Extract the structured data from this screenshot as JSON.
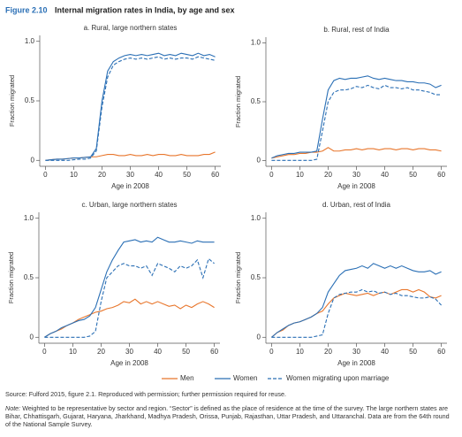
{
  "header": {
    "figure": "Figure 2.10",
    "title": "Internal migration rates in India, by age and sex"
  },
  "chart_data": [
    {
      "type": "line",
      "title": "a. Rural, large northern states",
      "xlabel": "Age in 2008",
      "ylabel": "Fraction migrated",
      "x": [
        0,
        2,
        4,
        6,
        8,
        10,
        12,
        14,
        16,
        18,
        20,
        22,
        24,
        26,
        28,
        30,
        32,
        34,
        36,
        38,
        40,
        42,
        44,
        46,
        48,
        50,
        52,
        54,
        56,
        58,
        60
      ],
      "xlim": [
        -2,
        62
      ],
      "ylim": [
        -0.05,
        1.05
      ],
      "xticks": [
        0,
        10,
        20,
        30,
        40,
        50,
        60
      ],
      "yticks": [
        0,
        0.5,
        {
          "value": 1,
          "label": "1.0"
        }
      ],
      "series": [
        {
          "name": "Men",
          "color": "#e8762c",
          "dashed": false,
          "values": [
            0,
            0.005,
            0.01,
            0.01,
            0.015,
            0.02,
            0.02,
            0.025,
            0.03,
            0.03,
            0.04,
            0.05,
            0.05,
            0.04,
            0.04,
            0.05,
            0.04,
            0.04,
            0.05,
            0.04,
            0.05,
            0.05,
            0.04,
            0.04,
            0.05,
            0.04,
            0.04,
            0.04,
            0.05,
            0.05,
            0.07
          ]
        },
        {
          "name": "Women",
          "color": "#2a6fb5",
          "dashed": false,
          "values": [
            0,
            0.005,
            0.01,
            0.01,
            0.015,
            0.02,
            0.02,
            0.025,
            0.03,
            0.1,
            0.5,
            0.75,
            0.83,
            0.86,
            0.88,
            0.89,
            0.88,
            0.89,
            0.88,
            0.89,
            0.9,
            0.88,
            0.89,
            0.88,
            0.9,
            0.89,
            0.88,
            0.9,
            0.88,
            0.89,
            0.87
          ]
        },
        {
          "name": "Women migrating upon marriage",
          "color": "#2a6fb5",
          "dashed": true,
          "values": [
            0,
            0,
            0,
            0,
            0,
            0.005,
            0.01,
            0.01,
            0.02,
            0.08,
            0.45,
            0.7,
            0.8,
            0.83,
            0.85,
            0.86,
            0.85,
            0.86,
            0.85,
            0.86,
            0.87,
            0.85,
            0.86,
            0.85,
            0.86,
            0.86,
            0.85,
            0.87,
            0.86,
            0.85,
            0.84
          ]
        }
      ]
    },
    {
      "type": "line",
      "title": "b. Rural, rest of India",
      "xlabel": "Age in 2008",
      "ylabel": "Fraction migrated",
      "x": [
        0,
        2,
        4,
        6,
        8,
        10,
        12,
        14,
        16,
        18,
        20,
        22,
        24,
        26,
        28,
        30,
        32,
        34,
        36,
        38,
        40,
        42,
        44,
        46,
        48,
        50,
        52,
        54,
        56,
        58,
        60
      ],
      "xlim": [
        -2,
        62
      ],
      "ylim": [
        -0.05,
        1.05
      ],
      "xticks": [
        0,
        10,
        20,
        30,
        40,
        50,
        60
      ],
      "yticks": [
        0,
        0.5,
        {
          "value": 1,
          "label": "1.0"
        }
      ],
      "series": [
        {
          "name": "Men",
          "color": "#e8762c",
          "dashed": false,
          "values": [
            0.02,
            0.03,
            0.04,
            0.05,
            0.05,
            0.06,
            0.06,
            0.07,
            0.07,
            0.08,
            0.11,
            0.08,
            0.08,
            0.09,
            0.09,
            0.1,
            0.09,
            0.1,
            0.1,
            0.09,
            0.1,
            0.1,
            0.09,
            0.1,
            0.1,
            0.09,
            0.1,
            0.1,
            0.09,
            0.09,
            0.08
          ]
        },
        {
          "name": "Women",
          "color": "#2a6fb5",
          "dashed": false,
          "values": [
            0.02,
            0.04,
            0.05,
            0.06,
            0.06,
            0.07,
            0.07,
            0.07,
            0.08,
            0.35,
            0.6,
            0.68,
            0.7,
            0.69,
            0.7,
            0.7,
            0.71,
            0.72,
            0.7,
            0.69,
            0.7,
            0.69,
            0.68,
            0.68,
            0.67,
            0.67,
            0.66,
            0.66,
            0.65,
            0.62,
            0.64
          ]
        },
        {
          "name": "Women migrating upon marriage",
          "color": "#2a6fb5",
          "dashed": true,
          "values": [
            0,
            0,
            0,
            0,
            0,
            0,
            0,
            0,
            0.01,
            0.25,
            0.5,
            0.58,
            0.6,
            0.6,
            0.61,
            0.63,
            0.62,
            0.64,
            0.62,
            0.61,
            0.64,
            0.62,
            0.62,
            0.61,
            0.62,
            0.6,
            0.6,
            0.59,
            0.58,
            0.56,
            0.56
          ]
        }
      ]
    },
    {
      "type": "line",
      "title": "c. Urban, large northern states",
      "xlabel": "Age in 2008",
      "ylabel": "Fraction migrated",
      "x": [
        0,
        2,
        4,
        6,
        8,
        10,
        12,
        14,
        16,
        18,
        20,
        22,
        24,
        26,
        28,
        30,
        32,
        34,
        36,
        38,
        40,
        42,
        44,
        46,
        48,
        50,
        52,
        54,
        56,
        58,
        60
      ],
      "xlim": [
        -2,
        62
      ],
      "ylim": [
        -0.05,
        1.05
      ],
      "xticks": [
        0,
        10,
        20,
        30,
        40,
        50,
        60
      ],
      "yticks": [
        0,
        0.5,
        {
          "value": 1,
          "label": "1.0"
        }
      ],
      "series": [
        {
          "name": "Men",
          "color": "#e8762c",
          "dashed": false,
          "values": [
            0,
            0.03,
            0.05,
            0.07,
            0.1,
            0.12,
            0.15,
            0.17,
            0.19,
            0.21,
            0.22,
            0.24,
            0.25,
            0.27,
            0.3,
            0.29,
            0.32,
            0.28,
            0.3,
            0.28,
            0.3,
            0.28,
            0.26,
            0.27,
            0.24,
            0.27,
            0.25,
            0.28,
            0.3,
            0.28,
            0.25
          ]
        },
        {
          "name": "Women",
          "color": "#2a6fb5",
          "dashed": false,
          "values": [
            0,
            0.03,
            0.05,
            0.08,
            0.1,
            0.12,
            0.14,
            0.15,
            0.18,
            0.25,
            0.4,
            0.55,
            0.65,
            0.73,
            0.8,
            0.81,
            0.82,
            0.8,
            0.81,
            0.8,
            0.84,
            0.82,
            0.8,
            0.8,
            0.81,
            0.8,
            0.79,
            0.81,
            0.8,
            0.8,
            0.8
          ]
        },
        {
          "name": "Women migrating upon marriage",
          "color": "#2a6fb5",
          "dashed": true,
          "values": [
            0,
            0,
            0,
            0,
            0,
            0,
            0,
            0,
            0.01,
            0.05,
            0.3,
            0.5,
            0.55,
            0.6,
            0.62,
            0.6,
            0.6,
            0.58,
            0.6,
            0.52,
            0.62,
            0.6,
            0.58,
            0.55,
            0.6,
            0.58,
            0.6,
            0.65,
            0.5,
            0.66,
            0.62
          ]
        }
      ]
    },
    {
      "type": "line",
      "title": "d. Urban, rest of India",
      "xlabel": "Age in 2008",
      "ylabel": "Fraction migrated",
      "x": [
        0,
        2,
        4,
        6,
        8,
        10,
        12,
        14,
        16,
        18,
        20,
        22,
        24,
        26,
        28,
        30,
        32,
        34,
        36,
        38,
        40,
        42,
        44,
        46,
        48,
        50,
        52,
        54,
        56,
        58,
        60
      ],
      "xlim": [
        -2,
        62
      ],
      "ylim": [
        -0.05,
        1.05
      ],
      "xticks": [
        0,
        10,
        20,
        30,
        40,
        50,
        60
      ],
      "yticks": [
        0,
        0.5,
        {
          "value": 1,
          "label": "1.0"
        }
      ],
      "series": [
        {
          "name": "Men",
          "color": "#e8762c",
          "dashed": false,
          "values": [
            0,
            0.04,
            0.06,
            0.1,
            0.12,
            0.13,
            0.15,
            0.17,
            0.2,
            0.22,
            0.28,
            0.33,
            0.35,
            0.37,
            0.36,
            0.35,
            0.36,
            0.37,
            0.35,
            0.37,
            0.38,
            0.36,
            0.38,
            0.4,
            0.4,
            0.38,
            0.4,
            0.38,
            0.34,
            0.33,
            0.35
          ]
        },
        {
          "name": "Women",
          "color": "#2a6fb5",
          "dashed": false,
          "values": [
            0,
            0.04,
            0.07,
            0.1,
            0.12,
            0.13,
            0.15,
            0.17,
            0.2,
            0.25,
            0.38,
            0.45,
            0.52,
            0.56,
            0.57,
            0.58,
            0.6,
            0.58,
            0.62,
            0.6,
            0.58,
            0.6,
            0.58,
            0.6,
            0.58,
            0.56,
            0.55,
            0.55,
            0.56,
            0.53,
            0.55
          ]
        },
        {
          "name": "Women migrating upon marriage",
          "color": "#2a6fb5",
          "dashed": true,
          "values": [
            0,
            0,
            0,
            0,
            0,
            0,
            0,
            0,
            0.01,
            0.02,
            0.2,
            0.33,
            0.36,
            0.37,
            0.38,
            0.38,
            0.4,
            0.38,
            0.39,
            0.37,
            0.38,
            0.36,
            0.37,
            0.35,
            0.35,
            0.34,
            0.33,
            0.33,
            0.34,
            0.32,
            0.27
          ]
        }
      ]
    }
  ],
  "source": "Source: Fulford 2015, figure 2.1. Reproduced with permission; further permission required for reuse.",
  "note": {
    "label": "Note:",
    "text": "Weighted to be representative by sector and region. “Sector” is defined as the place of residence at the time of the survey. The large northern states are Bihar, Chhattisgarh, Gujarat, Haryana, Jharkhand, Madhya Pradesh, Orissa, Punjab, Rajasthan, Uttar Pradesh, and Uttaranchal. Data are from the 64th round of the National Sample Survey."
  }
}
